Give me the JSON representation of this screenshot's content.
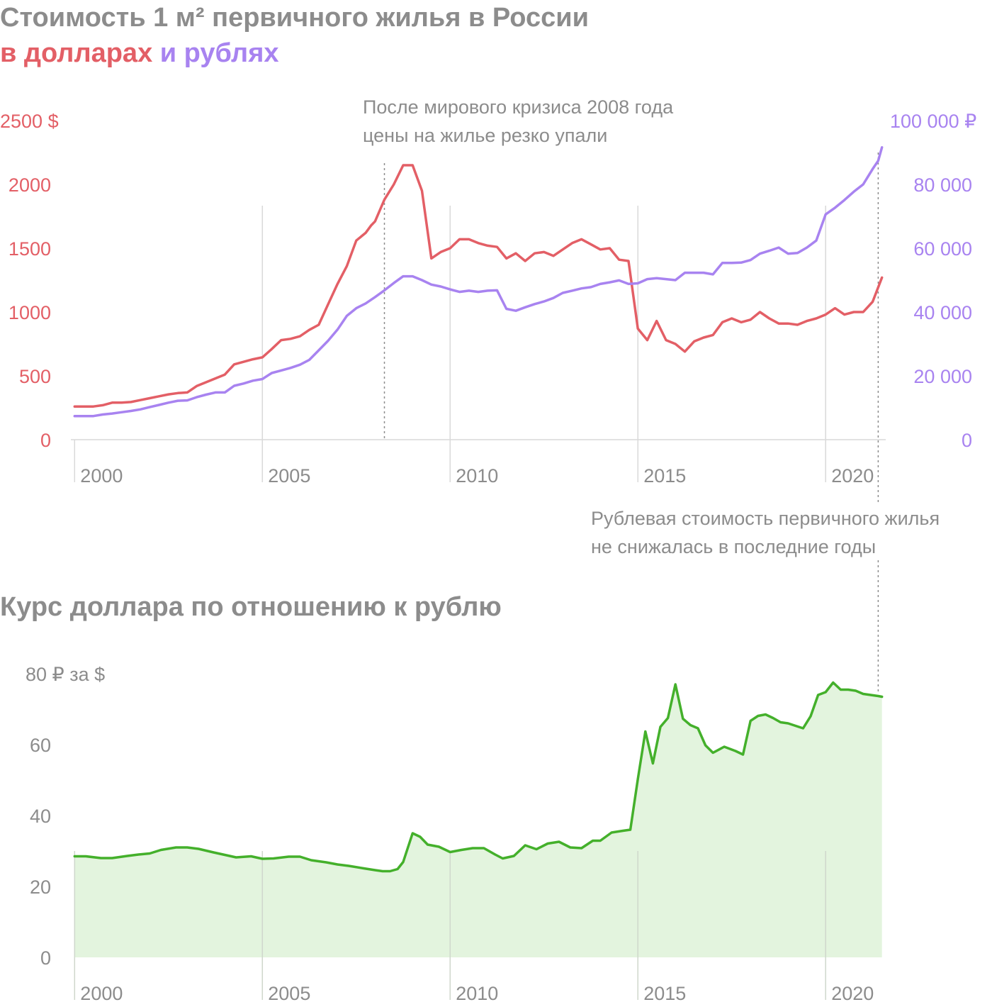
{
  "colors": {
    "usd": "#e35f66",
    "rub": "#a883f0",
    "rate_line": "#44b02b",
    "rate_fill": "#e3f4de",
    "title": "#8c8c8c",
    "tick": "#8c8c8c",
    "grid": "#d9d9d9"
  },
  "chart_data": [
    {
      "type": "line",
      "title_line1": "Стоимость 1 м² первичного жилья в России",
      "title_part_usd": "в долларах",
      "title_part_rub": "и рублях",
      "x_ticks": [
        "2000",
        "2005",
        "2010",
        "2015",
        "2020"
      ],
      "x_tick_values": [
        2000,
        2005,
        2010,
        2015,
        2020
      ],
      "xlim": [
        1999.9,
        2021.6
      ],
      "y_left_ticks": [
        "0",
        "500",
        "1000",
        "1500",
        "2000",
        "2500 $"
      ],
      "y_left_values": [
        0,
        500,
        1000,
        1500,
        2000,
        2500
      ],
      "ylim_left": [
        0,
        2500
      ],
      "y_right_ticks": [
        "0",
        "20 000",
        "40 000",
        "60 000",
        "80 000",
        "100 000 ₽"
      ],
      "y_right_values": [
        0,
        20000,
        40000,
        60000,
        80000,
        100000
      ],
      "ylim_right": [
        0,
        100000
      ],
      "grid": "vertical at x ticks",
      "annotations": [
        {
          "x": 2008.25,
          "lines": [
            "После мирового кризиса 2008 года",
            "цены на жилье резко упали"
          ]
        },
        {
          "x": 2021.4,
          "lines": [
            "Рублевая стоимость первичного жилья",
            "не снижалась в последние годы"
          ]
        }
      ],
      "series": [
        {
          "key": "usd",
          "axis": "left",
          "x": [
            2000.0,
            2000.25,
            2000.5,
            2000.75,
            2001.0,
            2001.25,
            2001.5,
            2001.75,
            2002.0,
            2002.25,
            2002.5,
            2002.75,
            2003.0,
            2003.25,
            2003.5,
            2003.75,
            2004.0,
            2004.25,
            2004.5,
            2004.75,
            2005.0,
            2005.25,
            2005.5,
            2005.75,
            2006.0,
            2006.25,
            2006.5,
            2006.75,
            2007.0,
            2007.25,
            2007.5,
            2007.75,
            2007.9,
            2008.0,
            2008.25,
            2008.5,
            2008.75,
            2009.0,
            2009.25,
            2009.5,
            2009.75,
            2010.0,
            2010.25,
            2010.5,
            2010.75,
            2011.0,
            2011.25,
            2011.5,
            2011.75,
            2012.0,
            2012.25,
            2012.5,
            2012.75,
            2013.0,
            2013.25,
            2013.5,
            2013.75,
            2014.0,
            2014.25,
            2014.5,
            2014.75,
            2015.0,
            2015.25,
            2015.5,
            2015.75,
            2016.0,
            2016.25,
            2016.5,
            2016.75,
            2017.0,
            2017.25,
            2017.5,
            2017.75,
            2018.0,
            2018.25,
            2018.5,
            2018.75,
            2019.0,
            2019.25,
            2019.5,
            2019.75,
            2020.0,
            2020.25,
            2020.5,
            2020.75,
            2021.0,
            2021.25,
            2021.5
          ],
          "y": [
            260,
            260,
            260,
            270,
            290,
            290,
            295,
            310,
            325,
            340,
            355,
            365,
            370,
            420,
            450,
            480,
            510,
            590,
            610,
            630,
            645,
            710,
            780,
            790,
            810,
            860,
            900,
            1060,
            1220,
            1360,
            1560,
            1620,
            1680,
            1710,
            1880,
            2000,
            2150,
            2150,
            1950,
            1420,
            1470,
            1500,
            1570,
            1570,
            1540,
            1520,
            1510,
            1420,
            1460,
            1400,
            1460,
            1470,
            1440,
            1490,
            1540,
            1570,
            1530,
            1490,
            1500,
            1410,
            1400,
            870,
            780,
            930,
            780,
            750,
            690,
            770,
            800,
            820,
            920,
            950,
            920,
            940,
            1000,
            950,
            910,
            910,
            900,
            930,
            950,
            980,
            1030,
            980,
            1000,
            1000,
            1080,
            1270
          ]
        },
        {
          "key": "rub",
          "axis": "right",
          "x": [
            2000.0,
            2000.25,
            2000.5,
            2000.75,
            2001.0,
            2001.25,
            2001.5,
            2001.75,
            2002.0,
            2002.25,
            2002.5,
            2002.75,
            2003.0,
            2003.25,
            2003.5,
            2003.75,
            2004.0,
            2004.25,
            2004.5,
            2004.75,
            2005.0,
            2005.25,
            2005.5,
            2005.75,
            2006.0,
            2006.25,
            2006.5,
            2006.75,
            2007.0,
            2007.25,
            2007.5,
            2007.75,
            2008.0,
            2008.25,
            2008.5,
            2008.75,
            2009.0,
            2009.25,
            2009.5,
            2009.75,
            2010.0,
            2010.25,
            2010.5,
            2010.75,
            2011.0,
            2011.25,
            2011.5,
            2011.75,
            2012.0,
            2012.25,
            2012.5,
            2012.75,
            2013.0,
            2013.25,
            2013.5,
            2013.75,
            2014.0,
            2014.25,
            2014.5,
            2014.75,
            2015.0,
            2015.25,
            2015.5,
            2015.75,
            2016.0,
            2016.25,
            2016.5,
            2016.75,
            2017.0,
            2017.25,
            2017.5,
            2017.75,
            2018.0,
            2018.25,
            2018.5,
            2018.75,
            2019.0,
            2019.25,
            2019.5,
            2019.75,
            2020.0,
            2020.25,
            2020.5,
            2020.75,
            2021.0,
            2021.25,
            2021.4,
            2021.5
          ],
          "y": [
            7400,
            7400,
            7400,
            7900,
            8200,
            8600,
            9000,
            9500,
            10200,
            10900,
            11600,
            12200,
            12300,
            13300,
            14100,
            14800,
            14800,
            16900,
            17600,
            18500,
            19000,
            20900,
            21700,
            22500,
            23500,
            25000,
            28000,
            31000,
            34500,
            38800,
            41200,
            42700,
            44700,
            46800,
            49100,
            51200,
            51200,
            50000,
            48600,
            48000,
            47100,
            46300,
            46700,
            46300,
            46700,
            46800,
            41000,
            40400,
            41500,
            42500,
            43300,
            44400,
            46000,
            46700,
            47400,
            47800,
            48800,
            49300,
            49900,
            48800,
            49000,
            50300,
            50600,
            50300,
            50000,
            52300,
            52300,
            52300,
            51800,
            55400,
            55400,
            55500,
            56300,
            58300,
            59200,
            60200,
            58300,
            58500,
            60200,
            62400,
            70600,
            72700,
            75100,
            77700,
            80000,
            84800,
            87400,
            91600
          ]
        }
      ]
    },
    {
      "type": "area",
      "title": "Курс доллара по отношению к рублю",
      "x_ticks": [
        "2000",
        "2005",
        "2010",
        "2015",
        "2020"
      ],
      "x_tick_values": [
        2000,
        2005,
        2010,
        2015,
        2020
      ],
      "xlim": [
        1999.9,
        2021.6
      ],
      "y_ticks": [
        "0",
        "20",
        "40",
        "60",
        "80 ₽ за $"
      ],
      "y_values": [
        0,
        20,
        40,
        60,
        80
      ],
      "ylim": [
        0,
        80
      ],
      "grid": "vertical at x ticks",
      "series": [
        {
          "key": "usd_rub",
          "x": [
            2000.0,
            2000.3,
            2000.7,
            2001.0,
            2001.4,
            2001.7,
            2002.0,
            2002.3,
            2002.7,
            2003.0,
            2003.3,
            2003.7,
            2004.0,
            2004.3,
            2004.7,
            2005.0,
            2005.3,
            2005.7,
            2006.0,
            2006.3,
            2006.7,
            2007.0,
            2007.3,
            2007.7,
            2008.0,
            2008.2,
            2008.4,
            2008.6,
            2008.75,
            2009.0,
            2009.2,
            2009.4,
            2009.7,
            2010.0,
            2010.3,
            2010.6,
            2010.9,
            2011.2,
            2011.4,
            2011.7,
            2012.0,
            2012.3,
            2012.6,
            2012.9,
            2013.2,
            2013.5,
            2013.8,
            2014.0,
            2014.3,
            2014.6,
            2014.8,
            2015.0,
            2015.2,
            2015.4,
            2015.6,
            2015.8,
            2016.0,
            2016.2,
            2016.4,
            2016.6,
            2016.8,
            2017.0,
            2017.3,
            2017.6,
            2017.8,
            2018.0,
            2018.2,
            2018.4,
            2018.6,
            2018.8,
            2019.0,
            2019.2,
            2019.4,
            2019.6,
            2019.8,
            2020.0,
            2020.2,
            2020.4,
            2020.6,
            2020.8,
            2021.0,
            2021.2,
            2021.4,
            2021.5
          ],
          "y": [
            28.5,
            28.5,
            28.0,
            28.0,
            28.6,
            29.0,
            29.3,
            30.3,
            31.0,
            31.0,
            30.6,
            29.6,
            28.9,
            28.2,
            28.5,
            27.8,
            27.9,
            28.4,
            28.4,
            27.4,
            26.8,
            26.2,
            25.8,
            25.1,
            24.6,
            24.3,
            24.3,
            24.9,
            26.9,
            35.0,
            34.0,
            31.8,
            31.2,
            29.7,
            30.3,
            30.8,
            30.8,
            29.0,
            27.9,
            28.6,
            31.6,
            30.5,
            32.1,
            32.6,
            31.0,
            30.8,
            32.9,
            32.9,
            35.2,
            35.7,
            36.0,
            50.3,
            63.7,
            54.7,
            65.0,
            67.5,
            77.0,
            67.3,
            65.5,
            64.6,
            59.8,
            57.7,
            59.4,
            58.2,
            57.2,
            66.7,
            68.1,
            68.5,
            67.5,
            66.3,
            66.0,
            65.3,
            64.6,
            68.0,
            74.0,
            74.8,
            77.5,
            75.5,
            75.5,
            75.2,
            74.3,
            74.0,
            73.7,
            73.5
          ]
        }
      ]
    }
  ]
}
